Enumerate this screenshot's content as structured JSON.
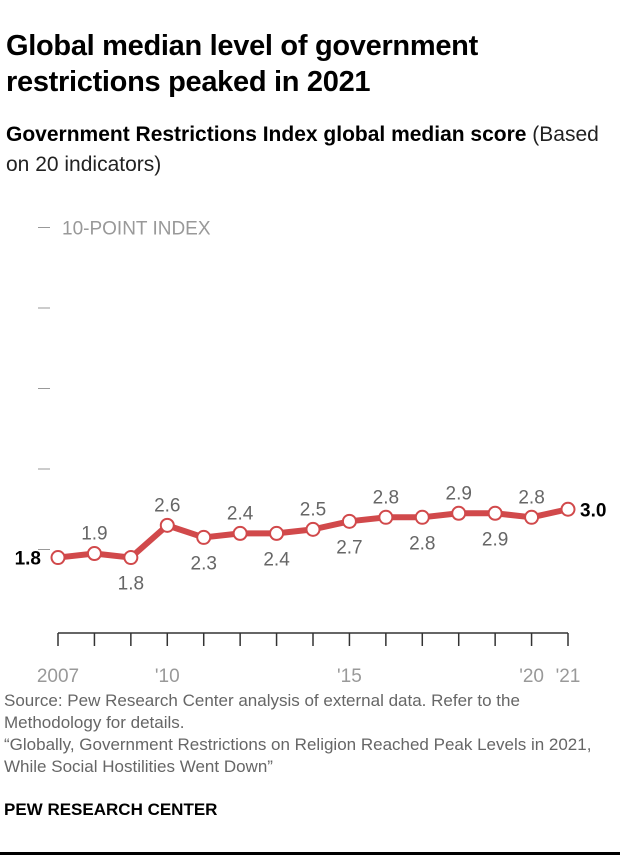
{
  "title": "Global median level of government restrictions peaked in 2021",
  "subtitle_bold": "Government Restrictions Index global median score",
  "subtitle_rest": " (Based on 20 indicators)",
  "source": "Source: Pew Research Center analysis of external data. Refer to the Methodology for details.",
  "report": "“Globally, Government Restrictions on Religion Reached Peak Levels in 2021, While Social Hostilities Went Down”",
  "brand": "PEW RESEARCH CENTER",
  "chart_data": {
    "type": "line",
    "x": [
      2007,
      2008,
      2009,
      2010,
      2011,
      2012,
      2013,
      2014,
      2015,
      2016,
      2017,
      2018,
      2019,
      2020,
      2021
    ],
    "values": [
      1.8,
      1.9,
      1.8,
      2.6,
      2.3,
      2.4,
      2.4,
      2.5,
      2.7,
      2.8,
      2.8,
      2.9,
      2.9,
      2.8,
      3.0
    ],
    "x_tick_labels": {
      "2007": "2007",
      "2010": "'10",
      "2015": "'15",
      "2020": "'20",
      "2021": "'21"
    },
    "y_axis_label": "10-POINT INDEX",
    "ylim": [
      0,
      10
    ],
    "y_ticks": [
      2,
      4,
      6,
      8,
      10
    ],
    "grid": false,
    "color": "#d1494b"
  }
}
